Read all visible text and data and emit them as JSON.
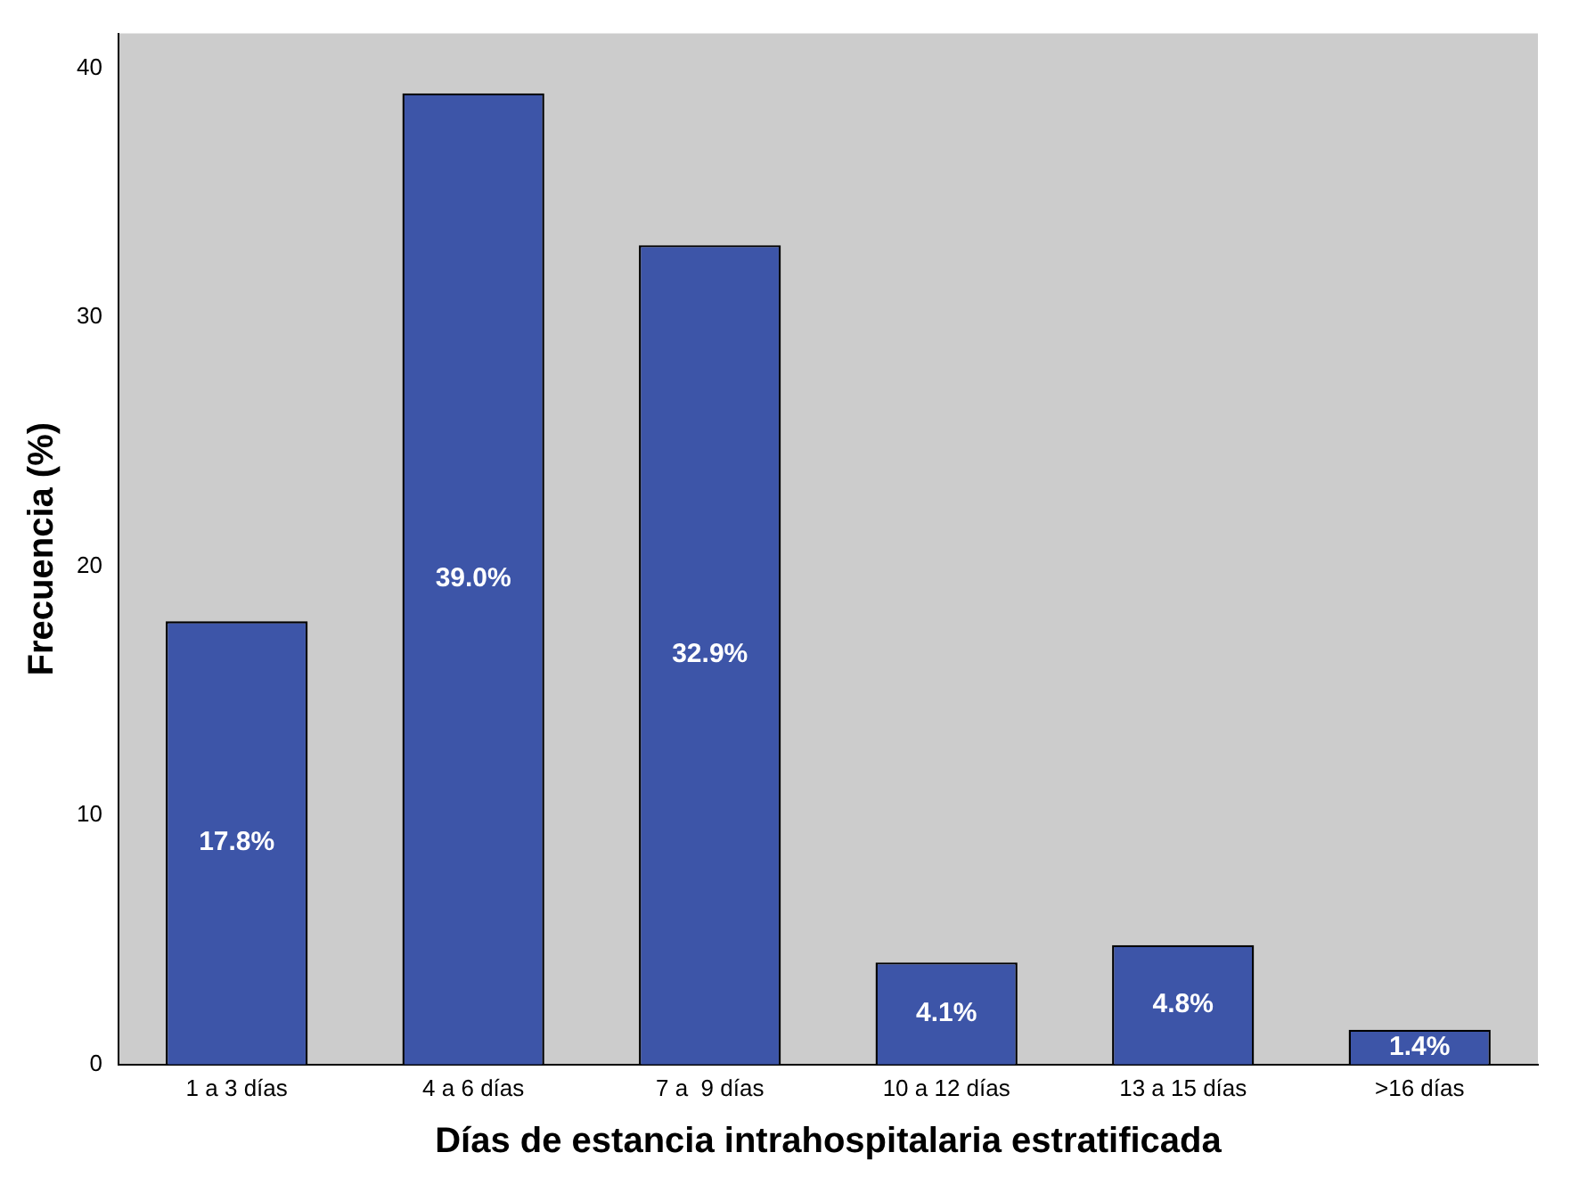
{
  "chart_data": {
    "type": "bar",
    "xlabel": "Días de estancia intrahospitalaria estratificada",
    "ylabel": "Frecuencia (%)",
    "categories": [
      "1 a 3 días",
      "4 a 6 días",
      "7 a  9 días",
      "10 a 12 días",
      "13 a 15 días",
      ">16 días"
    ],
    "values": [
      17.8,
      39.0,
      32.9,
      4.1,
      4.8,
      1.4
    ],
    "value_labels": [
      "17.8%",
      "39.0%",
      "32.9%",
      "4.1%",
      "4.8%",
      "1.4%"
    ],
    "color": "#3d55a8",
    "ylim": [
      0,
      41.4
    ],
    "yticks": [
      0,
      10,
      20,
      30,
      40
    ],
    "grid": false,
    "legend": false
  }
}
